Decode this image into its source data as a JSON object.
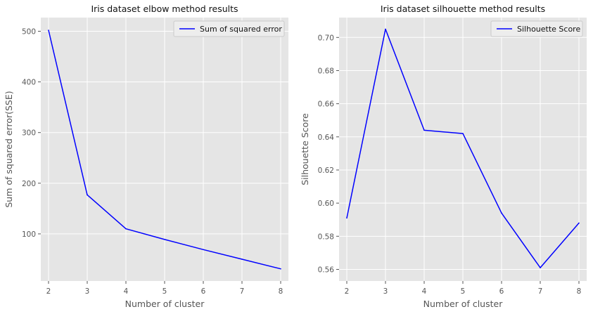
{
  "chart_data": [
    {
      "type": "line",
      "title": "Iris dataset elbow method results",
      "xlabel": "Number of cluster",
      "ylabel": "Sum of squared error(SSE)",
      "x": [
        2,
        3,
        4,
        5,
        6,
        7,
        8
      ],
      "xlim": [
        1.8,
        8.2
      ],
      "ylim": [
        7,
        527
      ],
      "xticks": [
        2,
        3,
        4,
        5,
        6,
        7,
        8
      ],
      "yticks": [
        100,
        200,
        300,
        400,
        500
      ],
      "grid": true,
      "legend": "top-right",
      "series": [
        {
          "name": "Sum of squared error",
          "color": "#0000ff",
          "values": [
            502,
            177,
            110,
            89,
            69,
            50,
            31
          ]
        }
      ]
    },
    {
      "type": "line",
      "title": "Iris dataset silhouette method results",
      "xlabel": "Number of cluster",
      "ylabel": "Silhouette Score",
      "x": [
        2,
        3,
        4,
        5,
        6,
        7,
        8
      ],
      "xlim": [
        1.8,
        8.2
      ],
      "ylim": [
        0.553,
        0.712
      ],
      "xticks": [
        2,
        3,
        4,
        5,
        6,
        7,
        8
      ],
      "yticks": [
        0.56,
        0.58,
        0.6,
        0.62,
        0.64,
        0.66,
        0.68,
        0.7
      ],
      "yticklabels": [
        "0.56",
        "0.58",
        "0.60",
        "0.62",
        "0.64",
        "0.66",
        "0.68",
        "0.70"
      ],
      "grid": true,
      "legend": "top-right",
      "series": [
        {
          "name": "Silhouette Score",
          "color": "#0000ff",
          "values": [
            0.591,
            0.705,
            0.644,
            0.642,
            0.594,
            0.561,
            0.588
          ]
        }
      ]
    }
  ]
}
